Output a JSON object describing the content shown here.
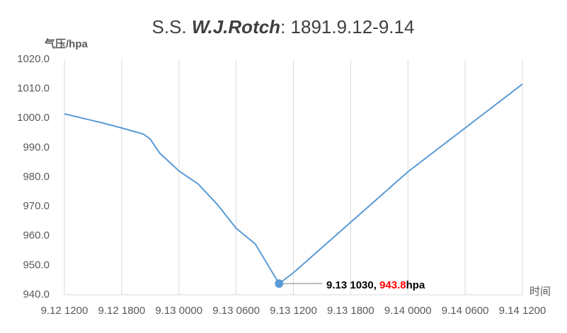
{
  "chart_data": {
    "type": "line",
    "title_prefix": "S.S.",
    "title_ship": "W.J.Rotch",
    "title_suffix": ": 1891.9.12-9.14",
    "y_label": "气压/hpa",
    "x_label": "时间",
    "x": [
      12,
      16,
      18,
      20.3,
      21,
      22,
      24,
      26,
      28,
      30,
      32,
      34.5,
      36,
      48,
      60
    ],
    "series": [
      {
        "color": "#5b9bd5",
        "values": [
          1001.5,
          998.4,
          996.7,
          994.6,
          992.9,
          988.1,
          982.1,
          977.7,
          970.8,
          962.6,
          957.3,
          943.8,
          947.5,
          981.8,
          1011.6
        ]
      }
    ],
    "xlim": [
      12,
      60
    ],
    "xticks": [
      {
        "value": 12,
        "label": "9.12 1200"
      },
      {
        "value": 18,
        "label": "9.12 1800"
      },
      {
        "value": 24,
        "label": "9.13 0000"
      },
      {
        "value": 30,
        "label": "9.13 0600"
      },
      {
        "value": 36,
        "label": "9.13 1200"
      },
      {
        "value": 42,
        "label": "9.13 1800"
      },
      {
        "value": 48,
        "label": "9.14 0000"
      },
      {
        "value": 54,
        "label": "9.14 0600"
      },
      {
        "value": 60,
        "label": "9.14 1200"
      }
    ],
    "ylim": [
      940,
      1020
    ],
    "yticks": [
      {
        "value": 940,
        "label": "940.0"
      },
      {
        "value": 950,
        "label": "950.0"
      },
      {
        "value": 960,
        "label": "960.0"
      },
      {
        "value": 970,
        "label": "970.0"
      },
      {
        "value": 980,
        "label": "980.0"
      },
      {
        "value": 990,
        "label": "990.0"
      },
      {
        "value": 1000,
        "label": "1000.0"
      },
      {
        "value": 1010,
        "label": "1010.0"
      },
      {
        "value": 1020,
        "label": "1020.0"
      }
    ],
    "grid": "x",
    "annotation": {
      "point": 11,
      "prefix": "9.13 1030, ",
      "value": 943.8,
      "value_color": "#ff0000",
      "unit": "hpa"
    }
  }
}
